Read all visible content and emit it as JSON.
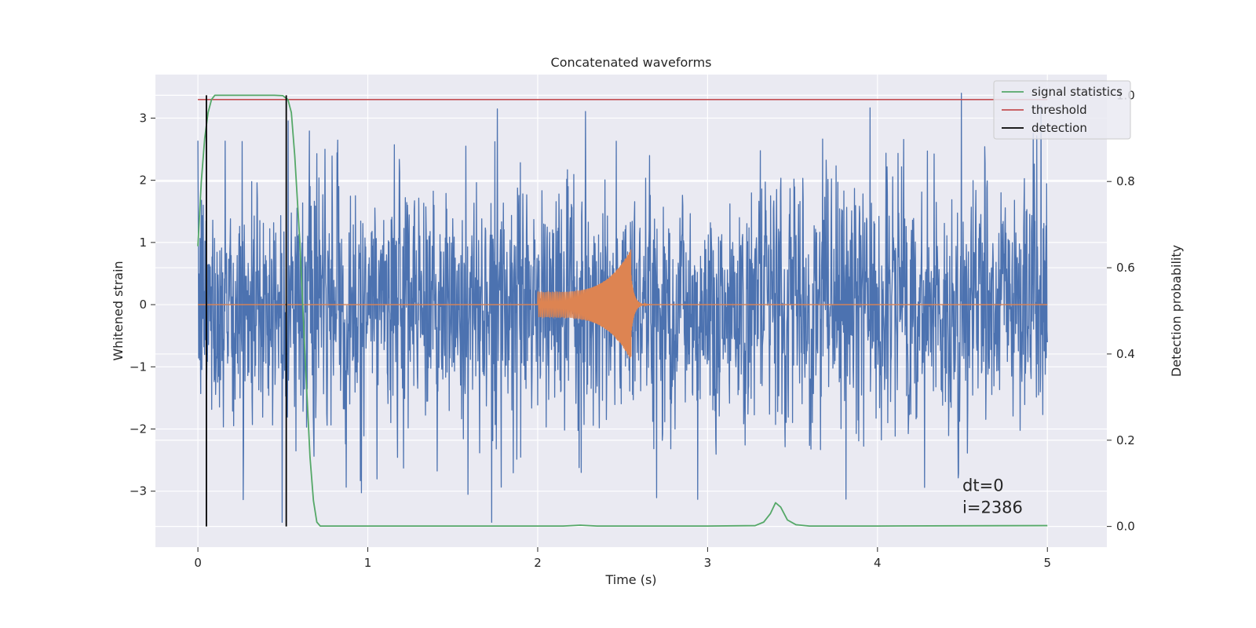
{
  "chart_data": {
    "type": "line",
    "title": "Concatenated waveforms",
    "xlabel": "Time (s)",
    "ylabel_left": "Whitened strain",
    "ylabel_right": "Detection probability",
    "xlim": [
      -0.25,
      5.35
    ],
    "ylim_left": [
      -3.9,
      3.7
    ],
    "ylim_right": [
      -0.048,
      1.048
    ],
    "xticks": [
      0,
      1,
      2,
      3,
      4,
      5
    ],
    "xtick_labels": [
      "0",
      "1",
      "2",
      "3",
      "4",
      "5"
    ],
    "yticks_left": [
      -3,
      -2,
      -1,
      0,
      1,
      2,
      3
    ],
    "ytick_labels_left": [
      "−3",
      "−2",
      "−1",
      "0",
      "1",
      "2",
      "3"
    ],
    "yticks_right": [
      0.0,
      0.2,
      0.4,
      0.6,
      0.8,
      1.0
    ],
    "ytick_labels_right": [
      "0.0",
      "0.2",
      "0.4",
      "0.6",
      "0.8",
      "1.0"
    ],
    "grid": true,
    "legend_position": "top-right",
    "series": [
      {
        "name": "strain noise",
        "axis": "left",
        "kind": "noise",
        "color": "#4c72b0",
        "x_range": [
          0,
          5
        ],
        "typical_amplitude": 1.3,
        "max_value": 3.4,
        "min_value": -3.5
      },
      {
        "name": "injected chirp",
        "axis": "left",
        "kind": "chirp",
        "color": "#dd8452",
        "x_range": [
          2.0,
          2.55
        ],
        "amplitude_start": 0.2,
        "amplitude_peak": 0.9,
        "peak_time": 2.55
      },
      {
        "name": "signal statistics",
        "axis": "right",
        "color": "#55a868",
        "x": [
          0.0,
          0.02,
          0.04,
          0.06,
          0.08,
          0.1,
          0.15,
          0.3,
          0.45,
          0.5,
          0.53,
          0.55,
          0.57,
          0.6,
          0.63,
          0.66,
          0.68,
          0.7,
          0.72,
          1.0,
          2.0,
          2.15,
          2.25,
          2.35,
          3.0,
          3.28,
          3.33,
          3.37,
          3.4,
          3.43,
          3.47,
          3.52,
          3.6,
          4.0,
          5.0
        ],
        "y": [
          0.65,
          0.8,
          0.9,
          0.96,
          0.99,
          1.0,
          1.0,
          1.0,
          1.0,
          0.999,
          0.99,
          0.96,
          0.86,
          0.66,
          0.4,
          0.16,
          0.06,
          0.01,
          0.001,
          0.001,
          0.001,
          0.001,
          0.003,
          0.001,
          0.001,
          0.002,
          0.01,
          0.03,
          0.055,
          0.045,
          0.015,
          0.004,
          0.001,
          0.001,
          0.002
        ]
      },
      {
        "name": "threshold",
        "axis": "right",
        "color": "#c44e52",
        "value": 0.99,
        "x_range": [
          0,
          5
        ]
      },
      {
        "name": "detection",
        "axis": "right",
        "color": "#000000",
        "x": [
          0.05,
          0.52
        ],
        "y_range": [
          0,
          1
        ]
      }
    ],
    "legend": [
      {
        "label": "signal statistics",
        "color": "#55a868"
      },
      {
        "label": "threshold",
        "color": "#c44e52"
      },
      {
        "label": "detection",
        "color": "#000000"
      }
    ],
    "annotations": [
      "dt=0",
      "i=2386"
    ],
    "annotation_position": [
      4.5,
      -3.0
    ]
  }
}
